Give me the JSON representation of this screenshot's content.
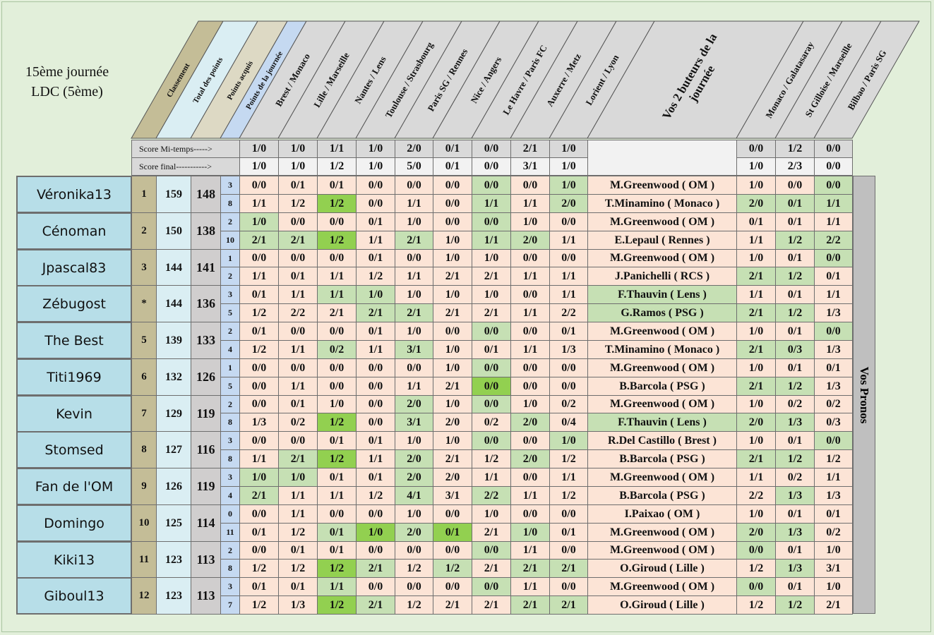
{
  "title": {
    "line1": "15ème journée",
    "line2": "LDC (5ème)"
  },
  "headers": {
    "classement": "Classement",
    "total": "Total des points",
    "acquis": "Points acquis",
    "journee": "Points de la journée",
    "matches": [
      "Brest / Monaco",
      "Lille / Marseille",
      "Nantes / Lens",
      "Toulouse / Strasbourg",
      "Paris SG / Rennes",
      "Nice / Angers",
      "Le Havre / Paris FC",
      "Auxerre / Metz",
      "Lorient / Lyon"
    ],
    "scorers_line1": "Vos 2 buteurs de la",
    "scorers_line2": "journée",
    "ldc": [
      "Monaco / Galatasaray",
      "St Gilloise / Marseille",
      "Bilbao / Paris SG"
    ]
  },
  "results": {
    "halftime_label": "Score Mi-temps----->",
    "final_label": "Score final----------->",
    "halftime": [
      "1/0",
      "1/0",
      "1/1",
      "1/0",
      "2/0",
      "0/1",
      "0/0",
      "2/1",
      "1/0"
    ],
    "halftime_ldc": [
      "0/0",
      "1/2",
      "0/0"
    ],
    "final": [
      "1/0",
      "1/0",
      "1/2",
      "1/0",
      "5/0",
      "0/1",
      "0/0",
      "3/1",
      "1/0"
    ],
    "final_ldc": [
      "1/0",
      "2/3",
      "0/0"
    ]
  },
  "side_label": "Vos Pronos",
  "colors": {
    "pink": "#fce4d6",
    "green": "#c6e0b4",
    "bright_green": "#92d050"
  },
  "rows": [
    {
      "name": "Véronika13",
      "rank": "1",
      "total": "159",
      "acquis": "148",
      "lines": [
        {
          "pts": "3",
          "scores": [
            "0/0",
            "0/1",
            "0/1",
            "0/0",
            "0/0",
            "0/0",
            "0/0",
            "0/0",
            "1/0"
          ],
          "colors": "ppppppgpg",
          "scorer": "M.Greenwood ( OM )",
          "scorer_color": "p",
          "ldc": [
            "1/0",
            "0/0",
            "0/0"
          ],
          "ldc_colors": "ppg"
        },
        {
          "pts": "8",
          "scores": [
            "1/1",
            "1/2",
            "1/2",
            "0/0",
            "1/1",
            "0/0",
            "1/1",
            "1/1",
            "2/0"
          ],
          "colors": "ppGpppgpg",
          "scorer": "T.Minamino ( Monaco )",
          "scorer_color": "p",
          "ldc": [
            "2/0",
            "0/1",
            "1/1"
          ],
          "ldc_colors": "ggg"
        }
      ]
    },
    {
      "name": "Cénoman",
      "rank": "2",
      "total": "150",
      "acquis": "138",
      "lines": [
        {
          "pts": "2",
          "scores": [
            "1/0",
            "0/0",
            "0/0",
            "0/1",
            "1/0",
            "0/0",
            "0/0",
            "1/0",
            "0/0"
          ],
          "colors": "gpppppgpp",
          "scorer": "M.Greenwood ( OM )",
          "scorer_color": "p",
          "ldc": [
            "0/1",
            "0/1",
            "1/1"
          ],
          "ldc_colors": "ppp"
        },
        {
          "pts": "10",
          "scores": [
            "2/1",
            "2/1",
            "1/2",
            "1/1",
            "2/1",
            "1/0",
            "1/1",
            "2/0",
            "1/1"
          ],
          "colors": "ggGpgpggp",
          "scorer": "E.Lepaul ( Rennes )",
          "scorer_color": "p",
          "ldc": [
            "1/1",
            "1/2",
            "2/2"
          ],
          "ldc_colors": "pgg"
        }
      ]
    },
    {
      "name": "Jpascal83",
      "rank": "3",
      "total": "144",
      "acquis": "141",
      "lines": [
        {
          "pts": "1",
          "scores": [
            "0/0",
            "0/0",
            "0/0",
            "0/1",
            "0/0",
            "1/0",
            "1/0",
            "0/0",
            "0/0"
          ],
          "colors": "ppppppppp",
          "scorer": "M.Greenwood ( OM )",
          "scorer_color": "p",
          "ldc": [
            "1/0",
            "0/1",
            "0/0"
          ],
          "ldc_colors": "ppg"
        },
        {
          "pts": "2",
          "scores": [
            "1/1",
            "0/1",
            "1/1",
            "1/2",
            "1/1",
            "2/1",
            "2/1",
            "1/1",
            "1/1"
          ],
          "colors": "ppppppppp",
          "scorer": "J.Panichelli ( RCS )",
          "scorer_color": "p",
          "ldc": [
            "2/1",
            "1/2",
            "0/1"
          ],
          "ldc_colors": "ggp"
        }
      ]
    },
    {
      "name": "Zébugost",
      "rank": "*",
      "total": "144",
      "acquis": "136",
      "lines": [
        {
          "pts": "3",
          "scores": [
            "0/1",
            "1/1",
            "1/1",
            "1/0",
            "1/0",
            "1/0",
            "1/0",
            "0/0",
            "1/1"
          ],
          "colors": "ppggppppp",
          "scorer": "F.Thauvin ( Lens )",
          "scorer_color": "g",
          "ldc": [
            "1/1",
            "0/1",
            "1/1"
          ],
          "ldc_colors": "ppp"
        },
        {
          "pts": "5",
          "scores": [
            "1/2",
            "2/2",
            "2/1",
            "2/1",
            "2/1",
            "2/1",
            "2/1",
            "1/1",
            "2/2"
          ],
          "colors": "pppggpppp",
          "scorer": "G.Ramos ( PSG )",
          "scorer_color": "g",
          "ldc": [
            "2/1",
            "1/2",
            "1/3"
          ],
          "ldc_colors": "ggp"
        }
      ]
    },
    {
      "name": "The Best",
      "rank": "5",
      "total": "139",
      "acquis": "133",
      "lines": [
        {
          "pts": "2",
          "scores": [
            "0/1",
            "0/0",
            "0/0",
            "0/1",
            "1/0",
            "0/0",
            "0/0",
            "0/0",
            "0/1"
          ],
          "colors": "ppppppgpp",
          "scorer": "M.Greenwood ( OM )",
          "scorer_color": "p",
          "ldc": [
            "1/0",
            "0/1",
            "0/0"
          ],
          "ldc_colors": "ppg"
        },
        {
          "pts": "4",
          "scores": [
            "1/2",
            "1/1",
            "0/2",
            "1/1",
            "3/1",
            "1/0",
            "0/1",
            "1/1",
            "1/3"
          ],
          "colors": "ppgpgpppp",
          "scorer": "T.Minamino ( Monaco )",
          "scorer_color": "p",
          "ldc": [
            "2/1",
            "0/3",
            "1/3"
          ],
          "ldc_colors": "ggp"
        }
      ]
    },
    {
      "name": "Titi1969",
      "rank": "6",
      "total": "132",
      "acquis": "126",
      "lines": [
        {
          "pts": "1",
          "scores": [
            "0/0",
            "0/0",
            "0/0",
            "0/0",
            "0/0",
            "1/0",
            "0/0",
            "0/0",
            "0/0"
          ],
          "colors": "ppppppgpp",
          "scorer": "M.Greenwood ( OM )",
          "scorer_color": "p",
          "ldc": [
            "1/0",
            "0/1",
            "0/1"
          ],
          "ldc_colors": "ppp"
        },
        {
          "pts": "5",
          "scores": [
            "0/0",
            "1/1",
            "0/0",
            "0/0",
            "1/1",
            "2/1",
            "0/0",
            "0/0",
            "0/0"
          ],
          "colors": "ppppppGpp",
          "scorer": "B.Barcola ( PSG )",
          "scorer_color": "p",
          "ldc": [
            "2/1",
            "1/2",
            "1/3"
          ],
          "ldc_colors": "ggp"
        }
      ]
    },
    {
      "name": "Kevin",
      "rank": "7",
      "total": "129",
      "acquis": "119",
      "lines": [
        {
          "pts": "2",
          "scores": [
            "0/0",
            "0/1",
            "1/0",
            "0/0",
            "2/0",
            "1/0",
            "0/0",
            "1/0",
            "0/2"
          ],
          "colors": "ppppgpgpp",
          "scorer": "M.Greenwood ( OM )",
          "scorer_color": "p",
          "ldc": [
            "1/0",
            "0/2",
            "0/2"
          ],
          "ldc_colors": "ppp"
        },
        {
          "pts": "8",
          "scores": [
            "1/3",
            "0/2",
            "1/2",
            "0/0",
            "3/1",
            "2/0",
            "0/2",
            "2/0",
            "0/4"
          ],
          "colors": "ppGpgppgp",
          "scorer": "F.Thauvin ( Lens )",
          "scorer_color": "g",
          "ldc": [
            "2/0",
            "1/3",
            "0/3"
          ],
          "ldc_colors": "ggp"
        }
      ]
    },
    {
      "name": "Stomsed",
      "rank": "8",
      "total": "127",
      "acquis": "116",
      "lines": [
        {
          "pts": "3",
          "scores": [
            "0/0",
            "0/0",
            "0/1",
            "0/1",
            "1/0",
            "1/0",
            "0/0",
            "0/0",
            "1/0"
          ],
          "colors": "ppppppgpg",
          "scorer": "R.Del Castillo  ( Brest )",
          "scorer_color": "p",
          "ldc": [
            "1/0",
            "0/1",
            "0/0"
          ],
          "ldc_colors": "ppg"
        },
        {
          "pts": "8",
          "scores": [
            "1/1",
            "2/1",
            "1/2",
            "1/1",
            "2/0",
            "2/1",
            "1/2",
            "2/0",
            "1/2"
          ],
          "colors": "pgGpgppgp",
          "scorer": "B.Barcola ( PSG )",
          "scorer_color": "p",
          "ldc": [
            "2/1",
            "1/2",
            "1/2"
          ],
          "ldc_colors": "ggp"
        }
      ]
    },
    {
      "name": "Fan de l'OM",
      "rank": "9",
      "total": "126",
      "acquis": "119",
      "lines": [
        {
          "pts": "3",
          "scores": [
            "1/0",
            "1/0",
            "0/1",
            "0/1",
            "2/0",
            "2/0",
            "1/1",
            "0/0",
            "1/1"
          ],
          "colors": "ggppgpppp",
          "scorer": "M.Greenwood ( OM )",
          "scorer_color": "p",
          "ldc": [
            "1/1",
            "0/2",
            "1/1"
          ],
          "ldc_colors": "ppp"
        },
        {
          "pts": "4",
          "scores": [
            "2/1",
            "1/1",
            "1/1",
            "1/2",
            "4/1",
            "3/1",
            "2/2",
            "1/1",
            "1/2"
          ],
          "colors": "gpppgpgpp",
          "scorer": "B.Barcola ( PSG )",
          "scorer_color": "p",
          "ldc": [
            "2/2",
            "1/3",
            "1/3"
          ],
          "ldc_colors": "pgp"
        }
      ]
    },
    {
      "name": "Domingo",
      "rank": "10",
      "total": "125",
      "acquis": "114",
      "lines": [
        {
          "pts": "0",
          "scores": [
            "0/0",
            "1/1",
            "0/0",
            "0/0",
            "1/0",
            "0/0",
            "1/0",
            "0/0",
            "0/0"
          ],
          "colors": "ppppppppp",
          "scorer": "I.Paixao ( OM )",
          "scorer_color": "p",
          "ldc": [
            "1/0",
            "0/1",
            "0/1"
          ],
          "ldc_colors": "ppp"
        },
        {
          "pts": "11",
          "scores": [
            "0/1",
            "1/2",
            "0/1",
            "1/0",
            "2/0",
            "0/1",
            "2/1",
            "1/0",
            "0/1"
          ],
          "colors": "ppgGgGpgp",
          "scorer": "M.Greenwood ( OM )",
          "scorer_color": "p",
          "ldc": [
            "2/0",
            "1/3",
            "0/2"
          ],
          "ldc_colors": "ggp"
        }
      ]
    },
    {
      "name": "Kiki13",
      "rank": "11",
      "total": "123",
      "acquis": "113",
      "lines": [
        {
          "pts": "2",
          "scores": [
            "0/0",
            "0/1",
            "0/1",
            "0/0",
            "0/0",
            "0/0",
            "0/0",
            "1/1",
            "0/0"
          ],
          "colors": "ppppppgpp",
          "scorer": "M.Greenwood ( OM )",
          "scorer_color": "p",
          "ldc": [
            "0/0",
            "0/1",
            "1/0"
          ],
          "ldc_colors": "gpp"
        },
        {
          "pts": "8",
          "scores": [
            "1/2",
            "1/2",
            "1/2",
            "2/1",
            "1/2",
            "1/2",
            "2/1",
            "2/1",
            "2/1"
          ],
          "colors": "ppGgpgpgg",
          "scorer": "O.Giroud ( Lille )",
          "scorer_color": "p",
          "ldc": [
            "1/2",
            "1/3",
            "3/1"
          ],
          "ldc_colors": "pgp"
        }
      ]
    },
    {
      "name": "Giboul13",
      "rank": "12",
      "total": "123",
      "acquis": "113",
      "lines": [
        {
          "pts": "3",
          "scores": [
            "0/1",
            "0/1",
            "1/1",
            "0/0",
            "0/0",
            "0/0",
            "0/0",
            "1/1",
            "0/0"
          ],
          "colors": "ppgpppgpp",
          "scorer": "M.Greenwood ( OM )",
          "scorer_color": "p",
          "ldc": [
            "0/0",
            "0/1",
            "1/0"
          ],
          "ldc_colors": "gpp"
        },
        {
          "pts": "7",
          "scores": [
            "1/2",
            "1/3",
            "1/2",
            "2/1",
            "1/2",
            "2/1",
            "2/1",
            "2/1",
            "2/1"
          ],
          "colors": "ppGgpppgg",
          "scorer": "O.Giroud ( Lille )",
          "scorer_color": "p",
          "ldc": [
            "1/2",
            "1/2",
            "2/1"
          ],
          "ldc_colors": "pgp"
        }
      ]
    }
  ]
}
